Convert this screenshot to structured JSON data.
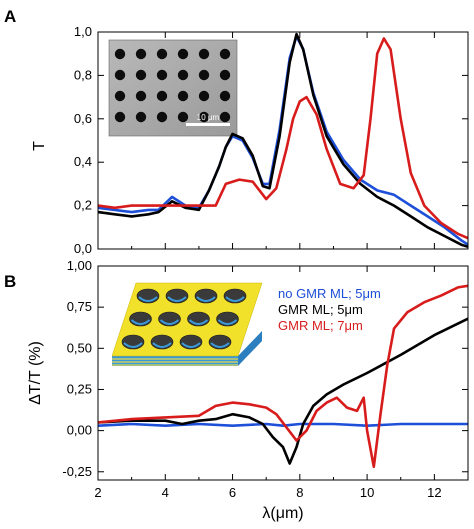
{
  "chart_data": [
    {
      "type": "line",
      "panel_label": "A",
      "ylabel": "T",
      "xlim": [
        2,
        13
      ],
      "ylim": [
        0,
        1.0
      ],
      "x_ticks": [
        2,
        4,
        6,
        8,
        10,
        12
      ],
      "y_ticks": [
        "0,0",
        "0,2",
        "0,4",
        "0,6",
        "0,8",
        "1,0"
      ],
      "inset": {
        "type": "micrograph",
        "scale_bar_label": "10 μm"
      },
      "series": [
        {
          "color": "#1e4fd8",
          "x": [
            2.0,
            2.5,
            3.0,
            3.5,
            3.8,
            4.2,
            4.6,
            5.0,
            5.3,
            5.6,
            5.8,
            6.0,
            6.3,
            6.6,
            6.9,
            7.1,
            7.4,
            7.7,
            7.9,
            8.1,
            8.4,
            8.8,
            9.3,
            9.8,
            10.3,
            10.8,
            11.3,
            11.8,
            12.3,
            12.8,
            13.0
          ],
          "y": [
            0.19,
            0.18,
            0.17,
            0.18,
            0.18,
            0.24,
            0.2,
            0.19,
            0.27,
            0.38,
            0.47,
            0.52,
            0.5,
            0.42,
            0.3,
            0.3,
            0.55,
            0.88,
            0.98,
            0.92,
            0.72,
            0.54,
            0.41,
            0.32,
            0.27,
            0.25,
            0.2,
            0.15,
            0.1,
            0.04,
            0.02
          ]
        },
        {
          "color": "#000000",
          "x": [
            2.0,
            2.5,
            3.0,
            3.5,
            3.8,
            4.2,
            4.6,
            5.0,
            5.3,
            5.6,
            5.8,
            6.0,
            6.3,
            6.6,
            6.9,
            7.1,
            7.4,
            7.7,
            7.9,
            8.1,
            8.4,
            8.8,
            9.3,
            9.8,
            10.3,
            10.8,
            11.3,
            11.8,
            12.3,
            12.8,
            13.0
          ],
          "y": [
            0.17,
            0.16,
            0.15,
            0.16,
            0.17,
            0.22,
            0.19,
            0.18,
            0.27,
            0.38,
            0.47,
            0.53,
            0.51,
            0.43,
            0.29,
            0.28,
            0.52,
            0.86,
            0.99,
            0.92,
            0.71,
            0.52,
            0.39,
            0.3,
            0.24,
            0.2,
            0.15,
            0.1,
            0.06,
            0.02,
            0.01
          ]
        },
        {
          "color": "#d81c1c",
          "x": [
            2.0,
            2.5,
            3.0,
            3.5,
            4.0,
            4.5,
            5.0,
            5.5,
            5.8,
            6.2,
            6.6,
            7.0,
            7.3,
            7.6,
            7.8,
            8.0,
            8.2,
            8.5,
            8.8,
            9.2,
            9.6,
            9.9,
            10.1,
            10.3,
            10.5,
            10.7,
            11.0,
            11.3,
            11.7,
            12.2,
            12.7,
            13.0
          ],
          "y": [
            0.2,
            0.19,
            0.2,
            0.2,
            0.2,
            0.2,
            0.2,
            0.2,
            0.3,
            0.32,
            0.31,
            0.23,
            0.28,
            0.46,
            0.6,
            0.68,
            0.7,
            0.62,
            0.46,
            0.3,
            0.28,
            0.34,
            0.6,
            0.9,
            0.97,
            0.92,
            0.6,
            0.35,
            0.2,
            0.12,
            0.07,
            0.05
          ]
        }
      ]
    },
    {
      "type": "line",
      "panel_label": "B",
      "ylabel": "ΔT/T (%)",
      "xlabel": "λ(μm)",
      "xlim": [
        2,
        13
      ],
      "ylim": [
        -0.3,
        1.0
      ],
      "x_ticks": [
        2,
        4,
        6,
        8,
        10,
        12
      ],
      "y_ticks": [
        "-0,25",
        "0,00",
        "0,25",
        "0,50",
        "0,75",
        "1,00"
      ],
      "legend_position": "top-right",
      "inset": {
        "type": "illustration"
      },
      "series": [
        {
          "name": "no GMR ML; 5μm",
          "color": "#1e4fd8",
          "x": [
            2.0,
            3.0,
            4.0,
            5.0,
            6.0,
            7.0,
            7.5,
            8.0,
            9.0,
            10.0,
            11.0,
            12.0,
            13.0
          ],
          "y": [
            0.03,
            0.04,
            0.03,
            0.04,
            0.03,
            0.04,
            0.03,
            0.04,
            0.04,
            0.03,
            0.04,
            0.04,
            0.04
          ]
        },
        {
          "name": "GMR ML; 5μm",
          "color": "#000000",
          "x": [
            2.0,
            3.0,
            4.0,
            4.5,
            5.0,
            5.5,
            6.0,
            6.5,
            6.9,
            7.2,
            7.5,
            7.7,
            7.9,
            8.1,
            8.4,
            8.8,
            9.3,
            10.0,
            11.0,
            12.0,
            13.0
          ],
          "y": [
            0.05,
            0.06,
            0.06,
            0.04,
            0.06,
            0.07,
            0.1,
            0.08,
            0.04,
            -0.04,
            -0.1,
            -0.2,
            -0.1,
            0.04,
            0.15,
            0.22,
            0.28,
            0.35,
            0.46,
            0.58,
            0.68
          ]
        },
        {
          "name": "GMR ML; 7μm",
          "color": "#d81c1c",
          "x": [
            2.0,
            3.0,
            4.0,
            5.0,
            5.5,
            6.0,
            6.5,
            7.0,
            7.3,
            7.6,
            7.9,
            8.2,
            8.5,
            8.8,
            9.1,
            9.4,
            9.7,
            9.9,
            10.0,
            10.2,
            10.4,
            10.6,
            10.8,
            11.2,
            11.7,
            12.2,
            12.7,
            13.0
          ],
          "y": [
            0.05,
            0.07,
            0.08,
            0.09,
            0.15,
            0.17,
            0.16,
            0.14,
            0.1,
            0.02,
            -0.06,
            0.0,
            0.12,
            0.17,
            0.2,
            0.14,
            0.12,
            0.2,
            0.0,
            -0.22,
            0.1,
            0.4,
            0.62,
            0.72,
            0.78,
            0.82,
            0.87,
            0.88
          ]
        }
      ]
    }
  ]
}
